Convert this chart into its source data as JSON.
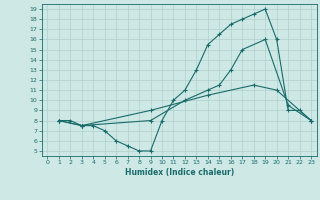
{
  "xlabel": "Humidex (Indice chaleur)",
  "background_color": "#cde8e5",
  "line_color": "#1a6b6b",
  "grid_color": "#b0d0cc",
  "xlim": [
    -0.5,
    23.5
  ],
  "ylim": [
    4.5,
    19.5
  ],
  "xticks": [
    0,
    1,
    2,
    3,
    4,
    5,
    6,
    7,
    8,
    9,
    10,
    11,
    12,
    13,
    14,
    15,
    16,
    17,
    18,
    19,
    20,
    21,
    22,
    23
  ],
  "yticks": [
    5,
    6,
    7,
    8,
    9,
    10,
    11,
    12,
    13,
    14,
    15,
    16,
    17,
    18,
    19
  ],
  "line1_x": [
    1,
    2,
    3,
    4,
    5,
    6,
    7,
    8,
    9,
    10,
    11,
    12,
    13,
    14,
    15,
    16,
    17,
    18,
    19,
    20,
    21,
    22,
    23
  ],
  "line1_y": [
    8,
    8,
    7.5,
    7.5,
    7,
    6,
    5.5,
    5,
    5,
    8,
    10,
    11,
    13,
    15.5,
    16.5,
    17.5,
    18,
    18.5,
    19,
    16,
    9,
    9,
    8
  ],
  "line2_x": [
    1,
    3,
    9,
    12,
    14,
    15,
    16,
    17,
    19,
    21,
    23
  ],
  "line2_y": [
    8,
    7.5,
    8,
    10,
    11,
    11.5,
    13,
    15,
    16,
    9.5,
    8
  ],
  "line3_x": [
    1,
    3,
    9,
    14,
    18,
    20,
    23
  ],
  "line3_y": [
    8,
    7.5,
    9,
    10.5,
    11.5,
    11,
    8
  ]
}
